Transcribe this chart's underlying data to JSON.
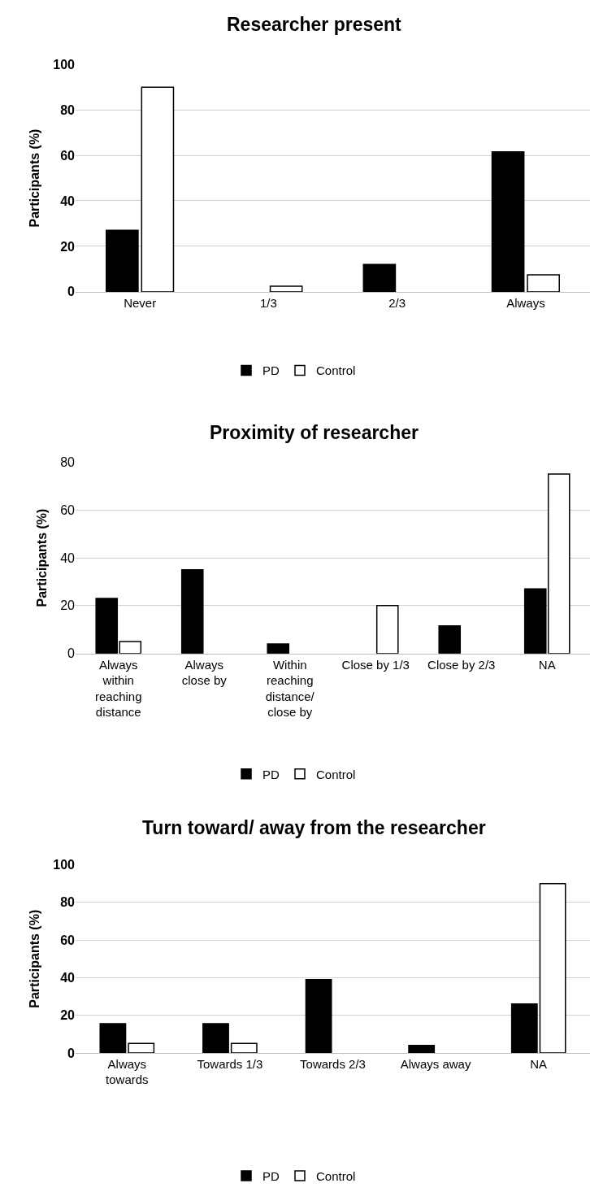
{
  "chart_data": [
    {
      "type": "bar",
      "title": "Researcher present",
      "ylabel": "Participants (%)",
      "categories": [
        "Never",
        "1/3",
        "2/3",
        "Always"
      ],
      "series": [
        {
          "name": "PD",
          "color": "#000000",
          "values": [
            27,
            0,
            12,
            61.5
          ]
        },
        {
          "name": "Control",
          "color": "#ffffff",
          "values": [
            90,
            2.5,
            0,
            7.5
          ]
        }
      ],
      "ylim": [
        0,
        100
      ],
      "yticks": [
        0,
        20,
        40,
        60,
        80,
        100
      ],
      "grid": "y",
      "legend": "bottom"
    },
    {
      "type": "bar",
      "title": "Proximity of researcher",
      "ylabel": "Participants (%)",
      "categories": [
        "Always\nwithin\nreaching\ndistance",
        "Always\nclose by",
        "Within\nreaching\ndistance/\nclose by",
        "Close by 1/3",
        "Close by 2/3",
        "NA"
      ],
      "series": [
        {
          "name": "PD",
          "color": "#000000",
          "values": [
            23,
            35,
            4,
            0,
            11.5,
            27
          ]
        },
        {
          "name": "Control",
          "color": "#ffffff",
          "values": [
            5,
            0,
            0,
            20,
            0,
            75
          ]
        }
      ],
      "ylim": [
        0,
        80
      ],
      "yticks": [
        0,
        20,
        40,
        60,
        80
      ],
      "grid": "y",
      "legend": "bottom"
    },
    {
      "type": "bar",
      "title": "Turn toward/ away from the researcher",
      "ylabel": "Participants (%)",
      "categories": [
        "Always\ntowards",
        "Towards 1/3",
        "Towards 2/3",
        "Always away",
        "NA"
      ],
      "series": [
        {
          "name": "PD",
          "color": "#000000",
          "values": [
            15.5,
            15.5,
            39,
            4,
            26
          ]
        },
        {
          "name": "Control",
          "color": "#ffffff",
          "values": [
            5,
            5,
            0,
            0,
            90
          ]
        }
      ],
      "ylim": [
        0,
        100
      ],
      "yticks": [
        0,
        20,
        40,
        60,
        80,
        100
      ],
      "grid": "y",
      "legend": "bottom"
    }
  ]
}
